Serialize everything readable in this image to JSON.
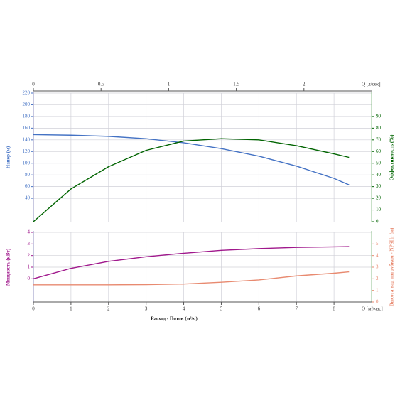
{
  "chart_data": [
    {
      "type": "line",
      "x": [
        0,
        1,
        2,
        3,
        4,
        5,
        6,
        7,
        8,
        8.4
      ],
      "xlim": [
        0,
        9
      ],
      "x2label": "Q [л/сек]",
      "x2lim": [
        0,
        2.5
      ],
      "x2ticks": [
        0,
        0.5,
        1,
        1.5,
        2
      ],
      "ylabel": "Напор (м)",
      "ylim": [
        0,
        220
      ],
      "yticks": [
        40,
        60,
        80,
        100,
        120,
        140,
        160,
        180,
        200,
        220
      ],
      "y2label": "Эффективность (%)",
      "y2lim": [
        0,
        110
      ],
      "y2ticks": [
        0,
        10,
        20,
        30,
        40,
        50,
        60,
        70,
        80,
        90
      ],
      "grid": true,
      "series": [
        {
          "name": "Напор",
          "color": "#4472c4",
          "axis": "y",
          "values": [
            149,
            148,
            146,
            142,
            135,
            125,
            112,
            95,
            74,
            63
          ]
        },
        {
          "name": "Эффективность",
          "color": "#006400",
          "axis": "y2",
          "values": [
            0,
            28,
            47,
            61,
            69,
            71,
            70,
            65,
            58,
            55
          ]
        }
      ]
    },
    {
      "type": "line",
      "x": [
        0,
        1,
        2,
        3,
        4,
        5,
        6,
        7,
        8,
        8.4
      ],
      "xlabel": "Расход - Поток (м³/ч)",
      "xunit": "Q [м³/час]",
      "xlim": [
        0,
        9
      ],
      "xticks": [
        0,
        1,
        2,
        3,
        4,
        5,
        6,
        7,
        8
      ],
      "ylabel": "Мощность (кВт)",
      "ylim": [
        -2,
        4
      ],
      "yticks": [
        0,
        1,
        2,
        3,
        4
      ],
      "y2label": "Высота над патрубком - NPSHr (м)",
      "y2lim": [
        0,
        6
      ],
      "y2ticks": [
        0,
        1,
        2,
        3,
        4,
        5
      ],
      "grid": true,
      "series": [
        {
          "name": "Мощность",
          "color": "#a0188c",
          "axis": "y",
          "values": [
            0,
            0.9,
            1.5,
            1.9,
            2.2,
            2.45,
            2.6,
            2.7,
            2.75,
            2.77
          ]
        },
        {
          "name": "NPSHr",
          "color": "#e88a70",
          "axis": "y2",
          "values": [
            1.48,
            1.48,
            1.48,
            1.5,
            1.55,
            1.7,
            1.9,
            2.25,
            2.48,
            2.6
          ]
        }
      ]
    }
  ]
}
